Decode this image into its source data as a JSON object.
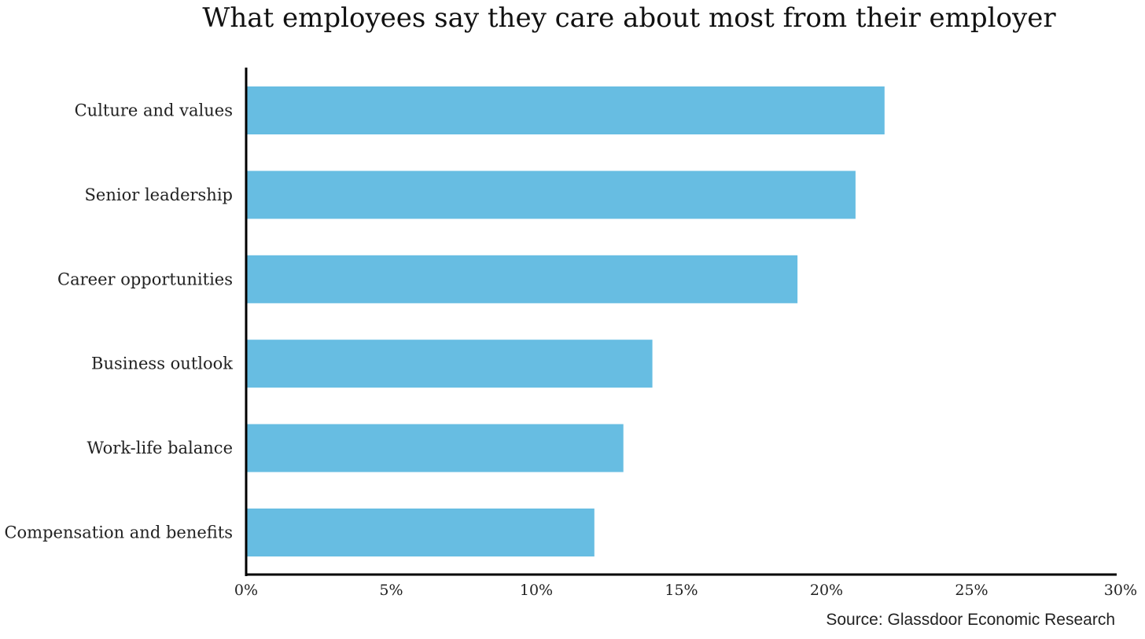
{
  "chart_data": {
    "type": "bar",
    "orientation": "horizontal",
    "title": "What employees say they care about most from their employer",
    "categories": [
      "Culture and values",
      "Senior leadership",
      "Career opportunities",
      "Business outlook",
      "Work-life balance",
      "Compensation and benefits"
    ],
    "values": [
      22,
      21,
      19,
      14,
      13,
      12
    ],
    "value_unit": "%",
    "xlim": [
      0,
      30
    ],
    "x_ticks": [
      0,
      5,
      10,
      15,
      20,
      25,
      30
    ],
    "x_tick_labels": [
      "0%",
      "5%",
      "10%",
      "15%",
      "20%",
      "25%",
      "30%"
    ],
    "xlabel": "",
    "ylabel": "",
    "grid": false,
    "legend": "none",
    "bar_color": "#67bde2",
    "axis_color": "#000000",
    "source": "Source: Glassdoor Economic Research"
  }
}
